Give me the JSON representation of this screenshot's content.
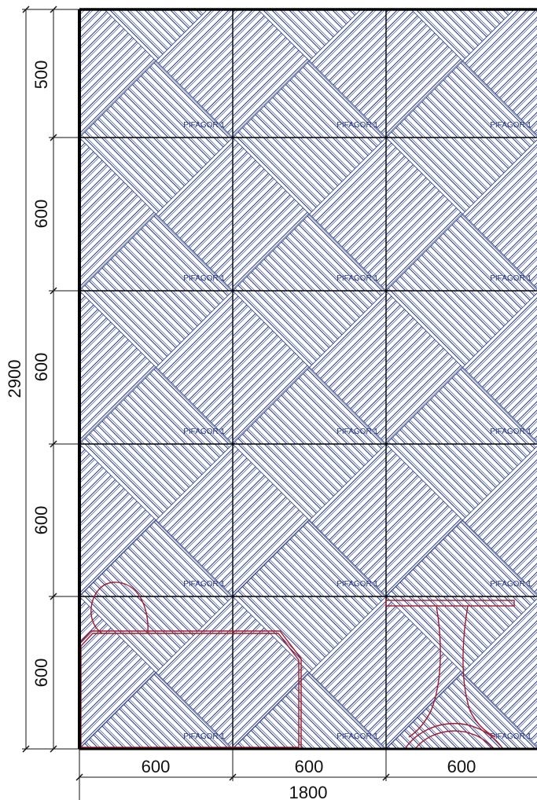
{
  "drawing": {
    "tile_label": "PIFAGOR 1",
    "total_width": "1800",
    "total_height": "2900",
    "row_heights": [
      "500",
      "600",
      "600",
      "600",
      "600"
    ],
    "column_widths": [
      "600",
      "600",
      "600"
    ],
    "colors": {
      "hatch": "#2f3f86",
      "grid": "#000000",
      "furniture": "#a01c2c",
      "dimension": "#111111"
    },
    "furniture": [
      {
        "name": "sofa"
      },
      {
        "name": "table"
      }
    ]
  }
}
